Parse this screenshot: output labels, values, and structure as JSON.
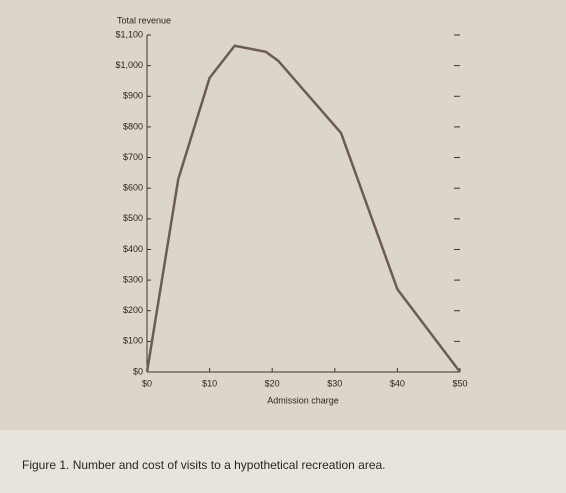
{
  "chart_data": {
    "type": "line",
    "title": "Total revenue",
    "x_label": "Admission charge",
    "caption": "Figure 1.  Number and cost of visits to a hypothetical recreation area.",
    "x": [
      0,
      5,
      10,
      14,
      19,
      21,
      31,
      40,
      50
    ],
    "values": [
      0,
      630,
      960,
      1065,
      1045,
      1015,
      780,
      270,
      0
    ],
    "color": "#6e5c54",
    "xlim": [
      0,
      50
    ],
    "xticks": [
      {
        "value": 0,
        "label": "$0"
      },
      {
        "value": 10,
        "label": "$10"
      },
      {
        "value": 20,
        "label": "$20"
      },
      {
        "value": 30,
        "label": "$30"
      },
      {
        "value": 40,
        "label": "$40"
      },
      {
        "value": 50,
        "label": "$50"
      }
    ],
    "ylim": [
      0,
      1100
    ],
    "yticks": [
      {
        "value": 0,
        "label": "$0"
      },
      {
        "value": 100,
        "label": "$100"
      },
      {
        "value": 200,
        "label": "$200"
      },
      {
        "value": 300,
        "label": "$300"
      },
      {
        "value": 400,
        "label": "$400"
      },
      {
        "value": 500,
        "label": "$500"
      },
      {
        "value": 600,
        "label": "$600"
      },
      {
        "value": 700,
        "label": "$700"
      },
      {
        "value": 800,
        "label": "$800"
      },
      {
        "value": 900,
        "label": "$900"
      },
      {
        "value": 1000,
        "label": "$1,000"
      },
      {
        "value": 1100,
        "label": "$1,100"
      }
    ]
  }
}
